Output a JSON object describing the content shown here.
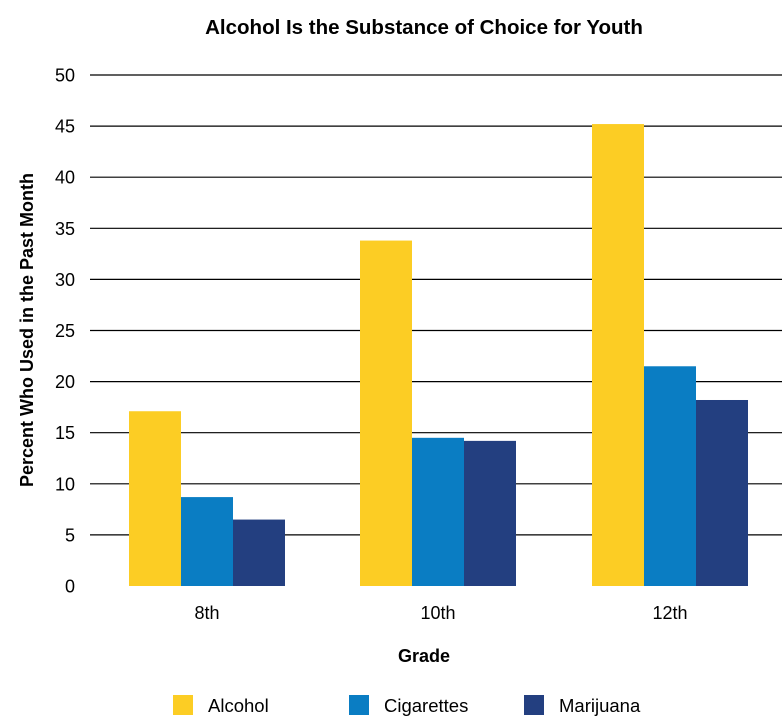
{
  "chart_data": {
    "type": "bar",
    "title": "Alcohol Is the Substance of Choice for Youth",
    "xlabel": "Grade",
    "ylabel": "Percent Who Used in the Past Month",
    "categories": [
      "8th",
      "10th",
      "12th"
    ],
    "series": [
      {
        "name": "Alcohol",
        "values": [
          17.1,
          33.8,
          45.2
        ],
        "color": "#FCCD24"
      },
      {
        "name": "Cigarettes",
        "values": [
          8.7,
          14.5,
          21.5
        ],
        "color": "#0A7DC3"
      },
      {
        "name": "Marijuana",
        "values": [
          6.5,
          14.2,
          18.2
        ],
        "color": "#233F80"
      }
    ],
    "ylim": [
      0,
      50
    ],
    "yticks": [
      "0",
      "5",
      "10",
      "15",
      "20",
      "25",
      "30",
      "35",
      "40",
      "45",
      "50"
    ],
    "grid": true,
    "legend": "bottom"
  }
}
